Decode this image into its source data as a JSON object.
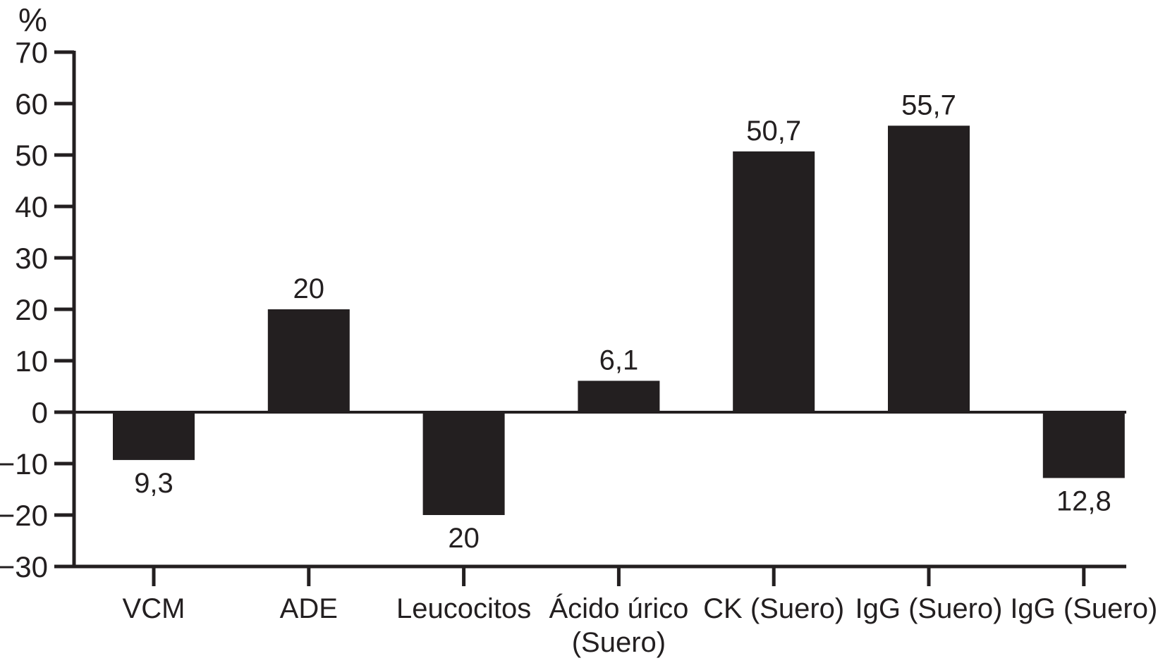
{
  "figure": {
    "background_color": "#ffffff",
    "ink_color": "#231f20"
  },
  "chart_data": {
    "type": "bar",
    "title": "",
    "subtitle": "",
    "xlabel": "",
    "ylabel": "%",
    "ylim": [
      -30,
      70
    ],
    "yticks": [
      70,
      60,
      50,
      40,
      30,
      20,
      10,
      0,
      -10,
      -20,
      -30
    ],
    "grid": false,
    "legend": null,
    "categories": [
      "VCM",
      "ADE",
      "Leucocitos",
      "Ácido úrico (Suero)",
      "CK (Suero)",
      "IgG (Suero)",
      "IgG (Suero)"
    ],
    "category_label_lines": [
      [
        "VCM"
      ],
      [
        "ADE"
      ],
      [
        "Leucocitos"
      ],
      [
        "Ácido úrico",
        "(Suero)"
      ],
      [
        "CK (Suero)"
      ],
      [
        "IgG (Suero)"
      ],
      [
        "IgG (Suero)"
      ]
    ],
    "values": [
      -9.3,
      20,
      -20,
      6.1,
      50.7,
      55.7,
      -12.8
    ],
    "bar_value_labels": [
      "9,3",
      "20",
      "20",
      "6,1",
      "50,7",
      "55,7",
      "12,8"
    ],
    "bar_color": "#231f20",
    "baseline_value": 0
  }
}
